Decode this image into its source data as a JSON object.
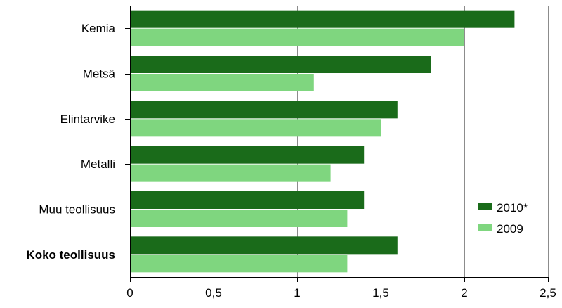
{
  "chart_data": {
    "type": "bar",
    "orientation": "horizontal",
    "categories": [
      "Kemia",
      "Metsä",
      "Elintarvike",
      "Metalli",
      "Muu teollisuus",
      "Koko teollisuus"
    ],
    "emphasized_category": "Koko teollisuus",
    "series": [
      {
        "name": "2010*",
        "color": "#1a6b1a",
        "values": [
          2.3,
          1.8,
          1.6,
          1.4,
          1.4,
          1.6
        ]
      },
      {
        "name": "2009",
        "color": "#7fd67f",
        "values": [
          2.0,
          1.1,
          1.5,
          1.2,
          1.3,
          1.3
        ]
      }
    ],
    "xlim": [
      0,
      2.5
    ],
    "xticks": [
      0,
      0.5,
      1,
      1.5,
      2,
      2.5
    ],
    "xtick_labels": [
      "0",
      "0,5",
      "1",
      "1,5",
      "2",
      "2,5"
    ],
    "title": "",
    "xlabel": "",
    "ylabel": "",
    "grid": "vertical",
    "legend_position": "lower-right"
  }
}
